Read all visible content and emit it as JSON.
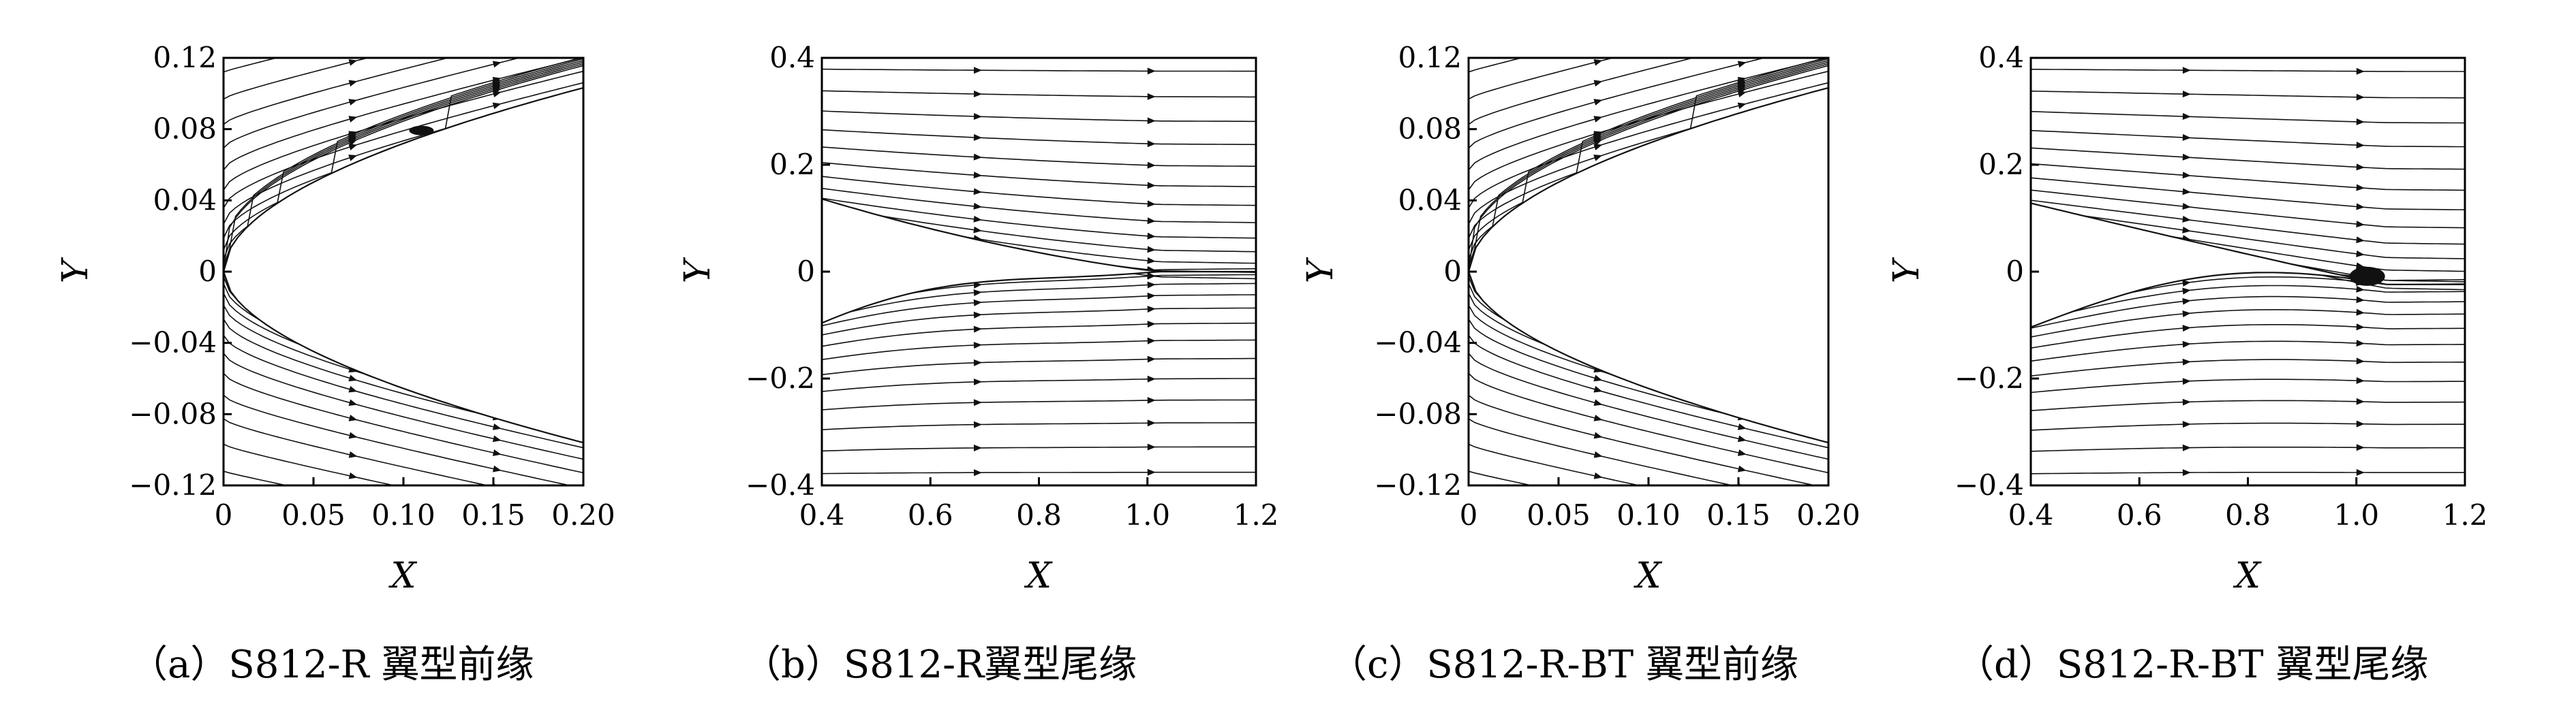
{
  "figure": {
    "panels": [
      {
        "id": "a",
        "caption": "（a）S812-R 翼型前缘",
        "xlabel": "X",
        "ylabel": "Y",
        "xticks": [
          "0",
          "0.05",
          "0.10",
          "0.15",
          "0.20"
        ],
        "yticks": [
          "0.12",
          "0.08",
          "0.04",
          "0",
          "−0.04",
          "−0.08",
          "−0.12"
        ]
      },
      {
        "id": "b",
        "caption": "（b）S812-R翼型尾缘",
        "xlabel": "X",
        "ylabel": "Y",
        "xticks": [
          "0.4",
          "0.6",
          "0.8",
          "1.0",
          "1.2"
        ],
        "yticks": [
          "0.4",
          "0.2",
          "0",
          "−0.2",
          "−0.4"
        ]
      },
      {
        "id": "c",
        "caption": "（c）S812-R-BT 翼型前缘",
        "xlabel": "X",
        "ylabel": "Y",
        "xticks": [
          "0",
          "0.05",
          "0.10",
          "0.15",
          "0.20"
        ],
        "yticks": [
          "0.12",
          "0.08",
          "0.04",
          "0",
          "−0.04",
          "−0.08",
          "−0.12"
        ]
      },
      {
        "id": "d",
        "caption": "（d）S812-R-BT 翼型尾缘",
        "xlabel": "X",
        "ylabel": "Y",
        "xticks": [
          "0.4",
          "0.6",
          "0.8",
          "1.0",
          "1.2"
        ],
        "yticks": [
          "0.4",
          "0.2",
          "0",
          "−0.2",
          "−0.4"
        ]
      }
    ]
  },
  "chart_data": [
    {
      "type": "streamline",
      "panel": "a",
      "xlim": [
        0,
        0.2
      ],
      "ylim": [
        -0.12,
        0.12
      ],
      "x_ticks": [
        0,
        0.05,
        0.1,
        0.15,
        0.2
      ],
      "y_ticks": [
        0.12,
        0.08,
        0.04,
        0,
        -0.04,
        -0.08,
        -0.12
      ],
      "region": "leading edge",
      "separation_bubble_x": 0.11
    },
    {
      "type": "streamline",
      "panel": "b",
      "xlim": [
        0.4,
        1.2
      ],
      "ylim": [
        -0.4,
        0.4
      ],
      "x_ticks": [
        0.4,
        0.6,
        0.8,
        1.0,
        1.2
      ],
      "y_ticks": [
        0.4,
        0.2,
        0,
        -0.2,
        -0.4
      ],
      "region": "trailing edge",
      "separation_bubble_x": null
    },
    {
      "type": "streamline",
      "panel": "c",
      "xlim": [
        0,
        0.2
      ],
      "ylim": [
        -0.12,
        0.12
      ],
      "x_ticks": [
        0,
        0.05,
        0.1,
        0.15,
        0.2
      ],
      "y_ticks": [
        0.12,
        0.08,
        0.04,
        0,
        -0.04,
        -0.08,
        -0.12
      ],
      "region": "leading edge",
      "separation_bubble_x": null
    },
    {
      "type": "streamline",
      "panel": "d",
      "xlim": [
        0.4,
        1.2
      ],
      "ylim": [
        -0.4,
        0.4
      ],
      "x_ticks": [
        0.4,
        0.6,
        0.8,
        1.0,
        1.2
      ],
      "y_ticks": [
        0.4,
        0.2,
        0,
        -0.2,
        -0.4
      ],
      "region": "trailing edge",
      "separation_bubble_x": 1.02
    }
  ]
}
